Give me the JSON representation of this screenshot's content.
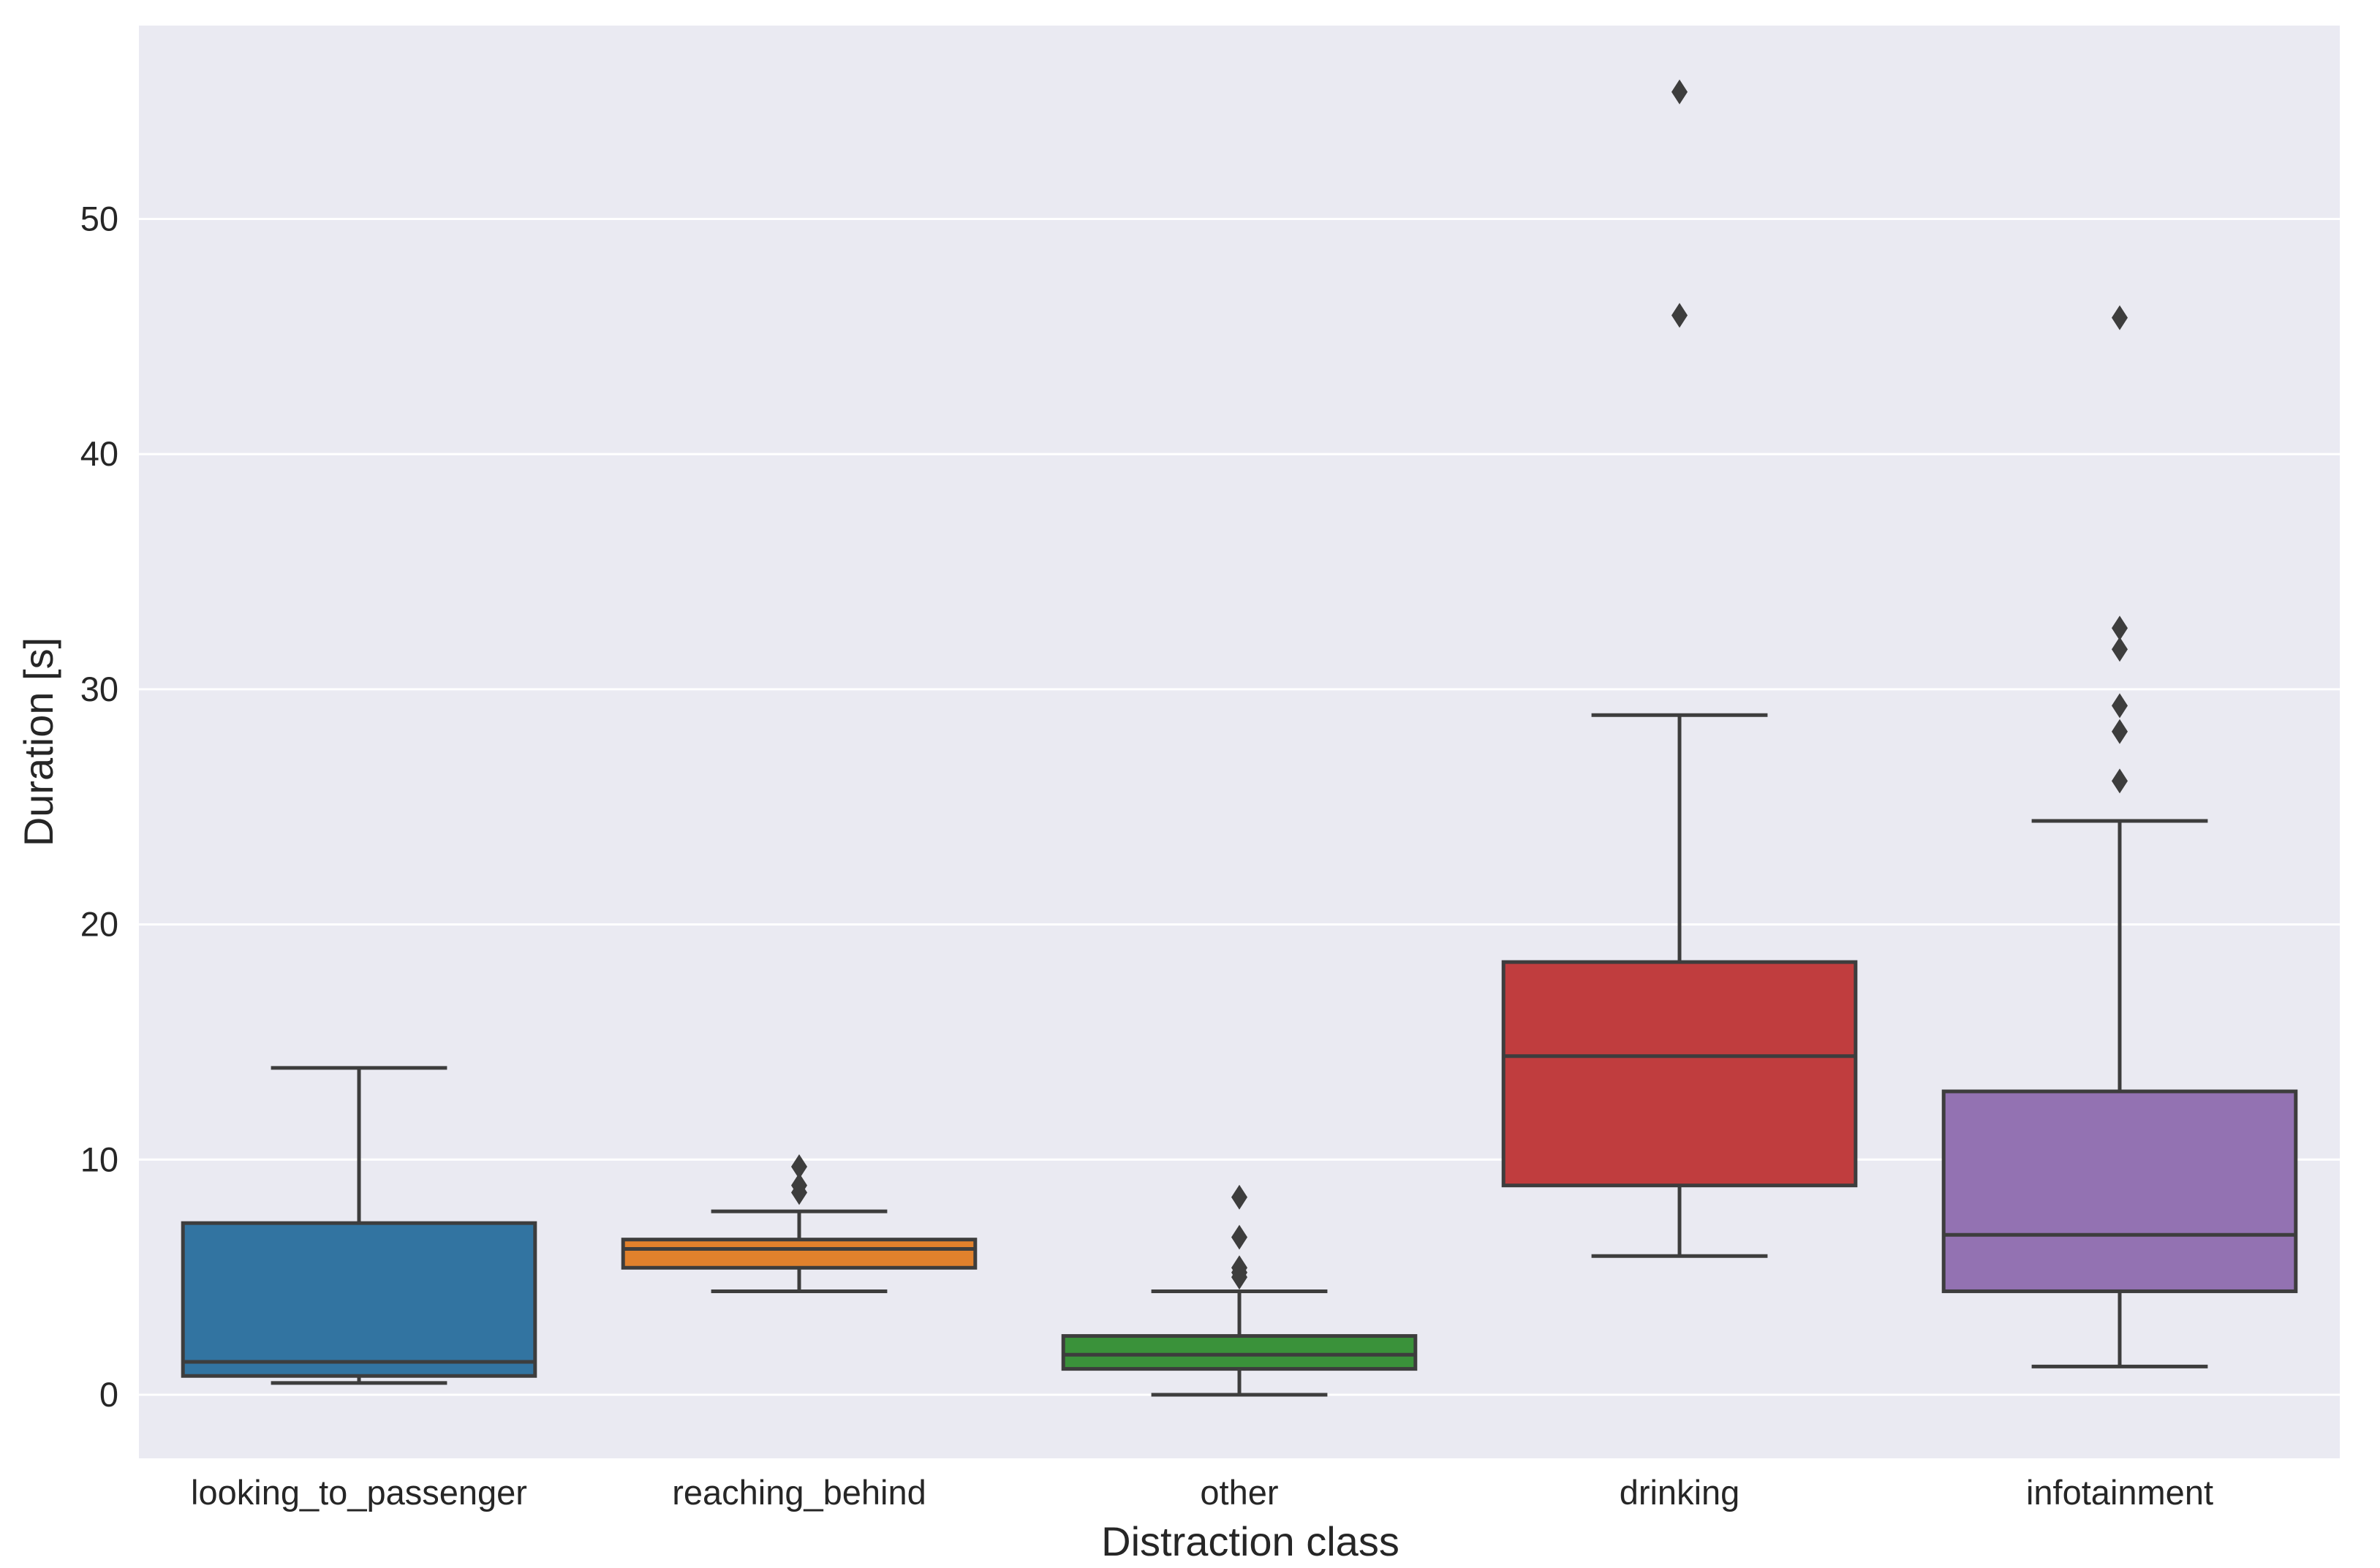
{
  "chart_data": {
    "type": "boxplot",
    "title": "",
    "xlabel": "Distraction class",
    "ylabel": "Duration [s]",
    "ylim": [
      -2.7,
      58.5
    ],
    "yticks": [
      0,
      10,
      20,
      30,
      40,
      50
    ],
    "grid": true,
    "background_color": "#EAEAF2",
    "grid_color": "#FFFFFF",
    "line_color": "#3D3D3D",
    "categories": [
      "looking_to_passenger",
      "reaching_behind",
      "other",
      "drinking",
      "infotainment"
    ],
    "boxes": [
      {
        "name": "looking_to_passenger",
        "color": "#3274A1",
        "whislo": 0.5,
        "q1": 0.8,
        "med": 1.4,
        "q3": 7.3,
        "whishi": 13.9,
        "fliers": []
      },
      {
        "name": "reaching_behind",
        "color": "#E1812C",
        "whislo": 4.4,
        "q1": 5.4,
        "med": 6.2,
        "q3": 6.6,
        "whishi": 7.8,
        "fliers": [
          8.6,
          8.9,
          9.7
        ]
      },
      {
        "name": "other",
        "color": "#3A923A",
        "whislo": 0.0,
        "q1": 1.1,
        "med": 1.7,
        "q3": 2.5,
        "whishi": 4.4,
        "fliers": [
          5.0,
          5.2,
          5.4,
          6.7,
          8.4
        ]
      },
      {
        "name": "drinking",
        "color": "#C03D3E",
        "whislo": 5.9,
        "q1": 8.9,
        "med": 14.4,
        "q3": 18.4,
        "whishi": 28.9,
        "fliers": [
          45.9,
          55.4
        ]
      },
      {
        "name": "infotainment",
        "color": "#9372B2",
        "whislo": 1.2,
        "q1": 4.4,
        "med": 6.8,
        "q3": 12.9,
        "whishi": 24.4,
        "fliers": [
          26.1,
          28.2,
          29.3,
          31.7,
          32.6,
          45.8
        ]
      }
    ]
  }
}
